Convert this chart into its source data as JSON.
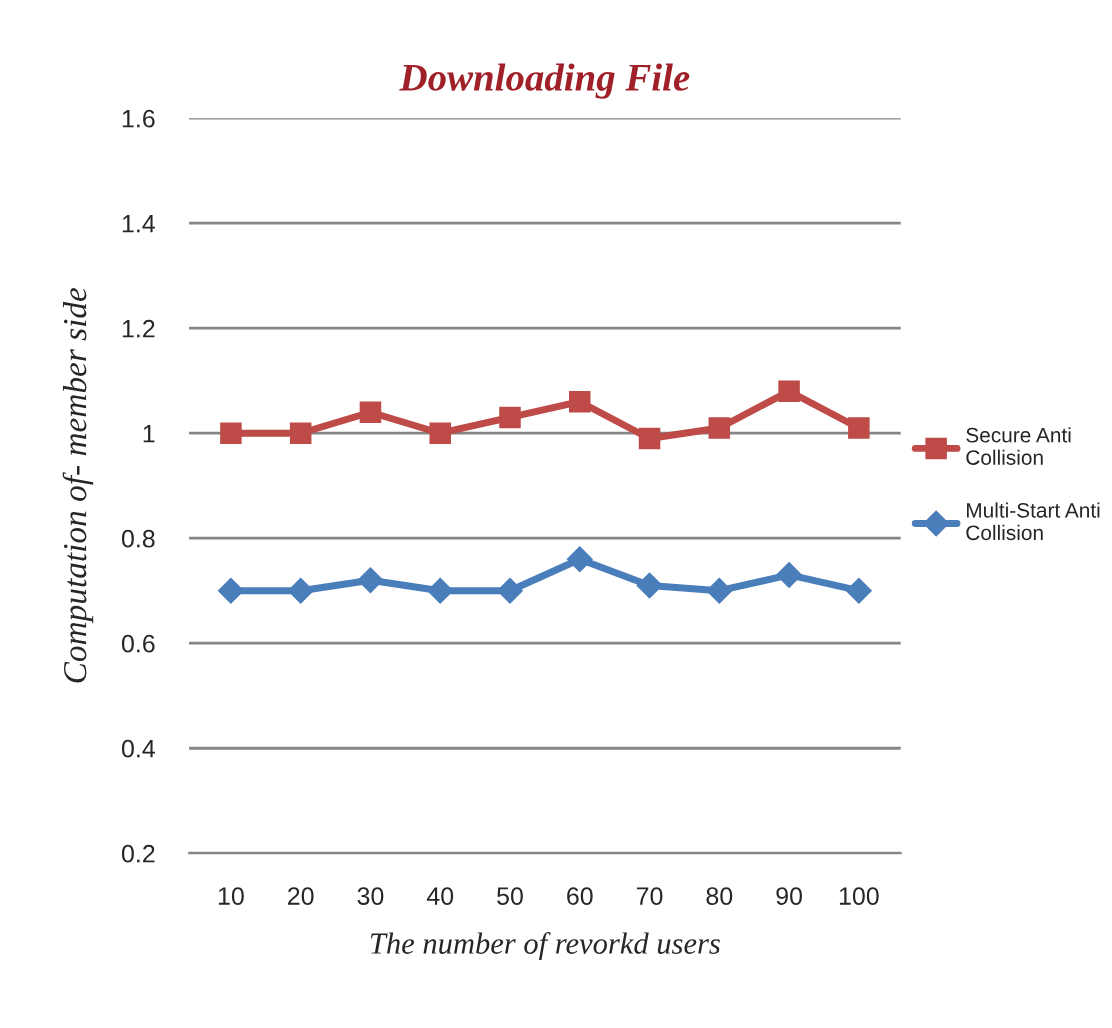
{
  "chart_data": {
    "type": "line",
    "title": "Downloading File",
    "xlabel": "The number of revorkd users",
    "ylabel": "Computation of- member side",
    "categories": [
      "10",
      "20",
      "30",
      "40",
      "50",
      "60",
      "70",
      "80",
      "90",
      "100"
    ],
    "series": [
      {
        "name": "Secure Anti Collision",
        "color": "#be4b48",
        "marker": "square",
        "values": [
          1.0,
          1.0,
          1.04,
          1.0,
          1.03,
          1.06,
          0.99,
          1.01,
          1.08,
          1.01
        ]
      },
      {
        "name": "Multi-Start Anti Collision",
        "color": "#4a7ebb",
        "marker": "diamond",
        "values": [
          0.7,
          0.7,
          0.72,
          0.7,
          0.7,
          0.76,
          0.71,
          0.7,
          0.73,
          0.7
        ]
      }
    ],
    "ylim": [
      0.2,
      1.6
    ],
    "yticks": [
      0.2,
      0.4,
      0.6,
      0.8,
      1,
      1.2,
      1.4,
      1.6
    ],
    "grid": "y",
    "legend": "right"
  }
}
